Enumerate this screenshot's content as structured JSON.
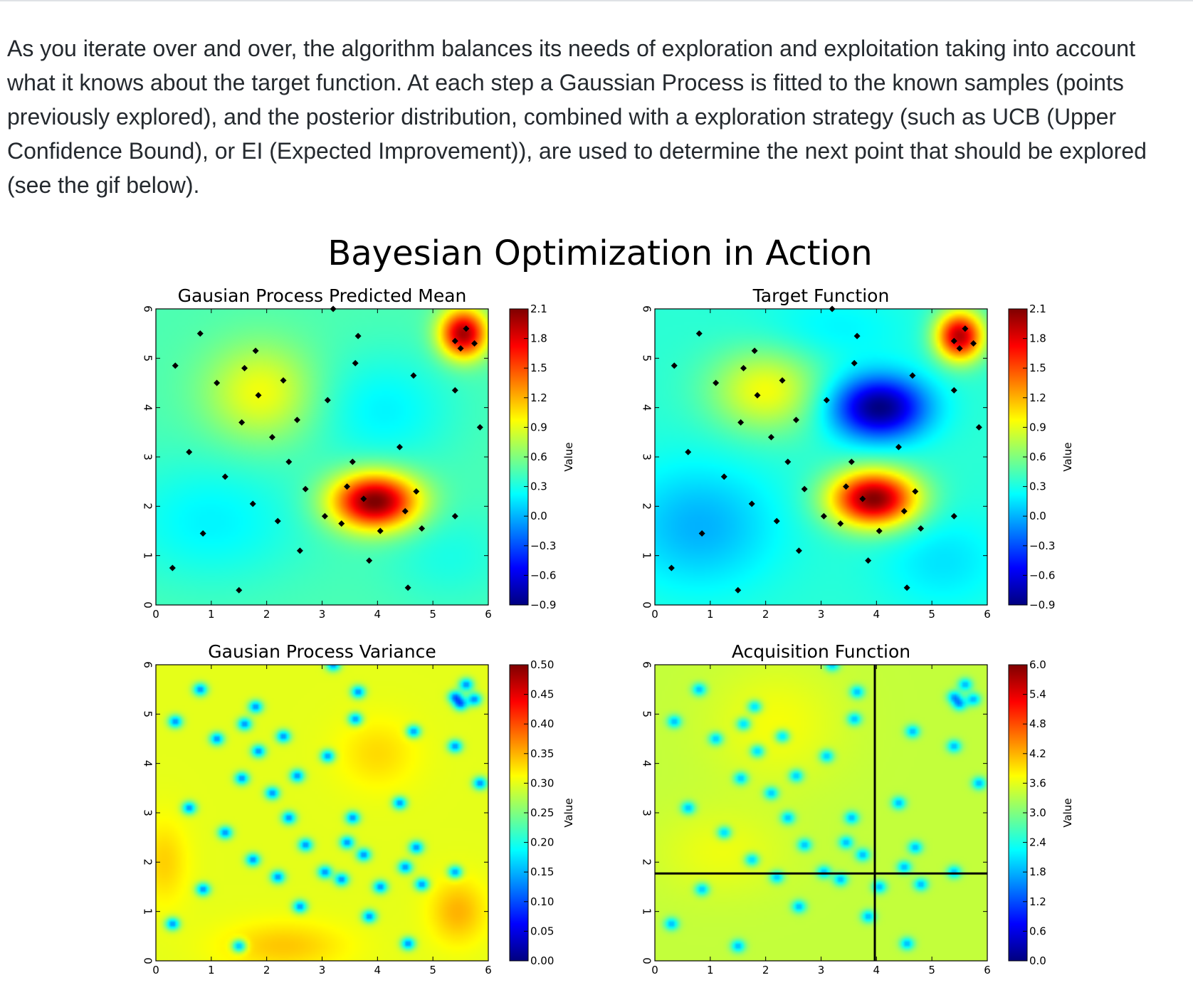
{
  "article": {
    "paragraph": "As you iterate over and over, the algorithm balances its needs of exploration and exploitation taking into account what it knows about the target function. At each step a Gaussian Process is fitted to the known samples (points previously explored), and the posterior distribution, combined with a exploration strategy (such as UCB (Upper Confidence Bound), or EI (Expected Improvement)), are used to determine the next point that should be explored (see the gif below)."
  },
  "figure": {
    "title": "Bayesian Optimization in Action"
  },
  "colors": {
    "jet": [
      "#00007f",
      "#0000ff",
      "#007fff",
      "#00ffff",
      "#7fff7f",
      "#ffff00",
      "#ff7f00",
      "#ff0000",
      "#7f0000"
    ],
    "text": "#24292e",
    "rule": "#dfe2e5"
  },
  "chart_data": [
    {
      "type": "heatmap",
      "title": "Gausian Process Predicted Mean",
      "xlim": [
        0,
        6
      ],
      "ylim": [
        0,
        6
      ],
      "x_ticks": [
        "0",
        "1",
        "2",
        "3",
        "4",
        "5",
        "6"
      ],
      "y_ticks": [
        "0",
        "1",
        "2",
        "3",
        "4",
        "5",
        "6"
      ],
      "colorbar_label": "Value",
      "colorbar_ticks": [
        "2.1",
        "1.8",
        "1.5",
        "1.2",
        "0.9",
        "0.6",
        "0.3",
        "0.0",
        "−0.3",
        "−0.6",
        "−0.9"
      ],
      "colorbar_range": [
        -0.9,
        2.1
      ],
      "surface": {
        "base": 0.45,
        "bumps": [
          {
            "x": 3.95,
            "y": 2.1,
            "amp": 1.7,
            "sx": 0.55,
            "sy": 0.4
          },
          {
            "x": 5.55,
            "y": 5.5,
            "amp": 1.55,
            "sx": 0.3,
            "sy": 0.35
          },
          {
            "x": 1.9,
            "y": 4.3,
            "amp": 0.5,
            "sx": 0.7,
            "sy": 0.7
          },
          {
            "x": 4.1,
            "y": 3.95,
            "amp": -0.25,
            "sx": 0.9,
            "sy": 0.8
          },
          {
            "x": 1.0,
            "y": 1.7,
            "amp": -0.25,
            "sx": 1.2,
            "sy": 0.9
          },
          {
            "x": 5.3,
            "y": 1.0,
            "amp": -0.15,
            "sx": 0.8,
            "sy": 0.7
          }
        ]
      },
      "points": [
        [
          0.3,
          0.75
        ],
        [
          0.85,
          1.45
        ],
        [
          1.5,
          0.3
        ],
        [
          0.6,
          3.1
        ],
        [
          1.25,
          2.6
        ],
        [
          1.75,
          2.05
        ],
        [
          2.2,
          1.7
        ],
        [
          2.4,
          2.9
        ],
        [
          2.7,
          2.35
        ],
        [
          3.05,
          1.8
        ],
        [
          3.35,
          1.65
        ],
        [
          3.45,
          2.4
        ],
        [
          3.55,
          2.9
        ],
        [
          3.75,
          2.15
        ],
        [
          3.85,
          0.9
        ],
        [
          4.05,
          1.5
        ],
        [
          4.4,
          3.2
        ],
        [
          4.7,
          2.3
        ],
        [
          4.5,
          1.9
        ],
        [
          4.8,
          1.55
        ],
        [
          4.55,
          0.35
        ],
        [
          5.5,
          5.2
        ],
        [
          5.4,
          5.35
        ],
        [
          5.6,
          5.6
        ],
        [
          5.75,
          5.3
        ],
        [
          5.85,
          3.6
        ],
        [
          5.4,
          1.8
        ],
        [
          0.8,
          5.5
        ],
        [
          0.35,
          4.85
        ],
        [
          1.1,
          4.5
        ],
        [
          1.6,
          4.8
        ],
        [
          1.8,
          5.15
        ],
        [
          2.3,
          4.55
        ],
        [
          2.55,
          3.75
        ],
        [
          1.85,
          4.25
        ],
        [
          1.55,
          3.7
        ],
        [
          2.1,
          3.4
        ],
        [
          3.1,
          4.15
        ],
        [
          3.65,
          5.45
        ],
        [
          3.6,
          4.9
        ],
        [
          4.65,
          4.65
        ],
        [
          5.4,
          4.35
        ],
        [
          2.6,
          1.1
        ],
        [
          3.2,
          6.0
        ]
      ],
      "cross": null
    },
    {
      "type": "heatmap",
      "title": "Target Function",
      "xlim": [
        0,
        6
      ],
      "ylim": [
        0,
        6
      ],
      "x_ticks": [
        "0",
        "1",
        "2",
        "3",
        "4",
        "5",
        "6"
      ],
      "y_ticks": [
        "0",
        "1",
        "2",
        "3",
        "4",
        "5",
        "6"
      ],
      "colorbar_label": "Value",
      "colorbar_ticks": [
        "2.1",
        "1.8",
        "1.5",
        "1.2",
        "0.9",
        "0.6",
        "0.3",
        "0.0",
        "−0.3",
        "−0.6",
        "−0.9"
      ],
      "colorbar_range": [
        -0.9,
        2.1
      ],
      "surface": {
        "base": 0.35,
        "bumps": [
          {
            "x": 3.95,
            "y": 2.15,
            "amp": 1.75,
            "sx": 0.55,
            "sy": 0.4
          },
          {
            "x": 5.5,
            "y": 5.45,
            "amp": 1.6,
            "sx": 0.3,
            "sy": 0.35
          },
          {
            "x": 2.0,
            "y": 4.35,
            "amp": 0.6,
            "sx": 0.7,
            "sy": 0.6
          },
          {
            "x": 4.05,
            "y": 4.0,
            "amp": -1.25,
            "sx": 0.6,
            "sy": 0.45
          },
          {
            "x": 0.8,
            "y": 1.6,
            "amp": -0.35,
            "sx": 1.0,
            "sy": 0.9
          },
          {
            "x": 5.2,
            "y": 0.9,
            "amp": -0.2,
            "sx": 0.8,
            "sy": 0.7
          },
          {
            "x": 3.2,
            "y": 5.6,
            "amp": -0.15,
            "sx": 1.0,
            "sy": 0.5
          }
        ]
      },
      "points": [
        [
          0.3,
          0.75
        ],
        [
          0.85,
          1.45
        ],
        [
          1.5,
          0.3
        ],
        [
          0.6,
          3.1
        ],
        [
          1.25,
          2.6
        ],
        [
          1.75,
          2.05
        ],
        [
          2.2,
          1.7
        ],
        [
          2.4,
          2.9
        ],
        [
          2.7,
          2.35
        ],
        [
          3.05,
          1.8
        ],
        [
          3.35,
          1.65
        ],
        [
          3.45,
          2.4
        ],
        [
          3.55,
          2.9
        ],
        [
          3.75,
          2.15
        ],
        [
          3.85,
          0.9
        ],
        [
          4.05,
          1.5
        ],
        [
          4.4,
          3.2
        ],
        [
          4.7,
          2.3
        ],
        [
          4.5,
          1.9
        ],
        [
          4.8,
          1.55
        ],
        [
          4.55,
          0.35
        ],
        [
          5.5,
          5.2
        ],
        [
          5.4,
          5.35
        ],
        [
          5.6,
          5.6
        ],
        [
          5.75,
          5.3
        ],
        [
          5.85,
          3.6
        ],
        [
          5.4,
          1.8
        ],
        [
          0.8,
          5.5
        ],
        [
          0.35,
          4.85
        ],
        [
          1.1,
          4.5
        ],
        [
          1.6,
          4.8
        ],
        [
          1.8,
          5.15
        ],
        [
          2.3,
          4.55
        ],
        [
          2.55,
          3.75
        ],
        [
          1.85,
          4.25
        ],
        [
          1.55,
          3.7
        ],
        [
          2.1,
          3.4
        ],
        [
          3.1,
          4.15
        ],
        [
          3.65,
          5.45
        ],
        [
          3.6,
          4.9
        ],
        [
          4.65,
          4.65
        ],
        [
          5.4,
          4.35
        ],
        [
          2.6,
          1.1
        ],
        [
          3.2,
          6.0
        ]
      ],
      "cross": null
    },
    {
      "type": "heatmap",
      "title": "Gausian Process Variance",
      "xlim": [
        0,
        6
      ],
      "ylim": [
        0,
        6
      ],
      "x_ticks": [
        "0",
        "1",
        "2",
        "3",
        "4",
        "5",
        "6"
      ],
      "y_ticks": [
        "0",
        "1",
        "2",
        "3",
        "4",
        "5",
        "6"
      ],
      "colorbar_label": "Value",
      "colorbar_ticks": [
        "0.50",
        "0.45",
        "0.40",
        "0.35",
        "0.30",
        "0.25",
        "0.20",
        "0.15",
        "0.10",
        "0.05",
        "0.00"
      ],
      "colorbar_range": [
        0.0,
        0.5
      ],
      "surface": {
        "base": 0.3,
        "bumps": [
          {
            "x": 5.45,
            "y": 1.0,
            "amp": 0.05,
            "sx": 0.35,
            "sy": 0.45
          },
          {
            "x": 2.3,
            "y": 0.3,
            "amp": 0.04,
            "sx": 0.8,
            "sy": 0.35
          },
          {
            "x": 0.15,
            "y": 2.0,
            "amp": 0.035,
            "sx": 0.3,
            "sy": 0.6
          },
          {
            "x": 4.0,
            "y": 4.2,
            "amp": 0.03,
            "sx": 0.5,
            "sy": 0.5
          }
        ],
        "dips": {
          "amp": 0.17,
          "s": 0.09
        }
      },
      "points": [
        [
          0.3,
          0.75
        ],
        [
          0.85,
          1.45
        ],
        [
          1.5,
          0.3
        ],
        [
          0.6,
          3.1
        ],
        [
          1.25,
          2.6
        ],
        [
          1.75,
          2.05
        ],
        [
          2.2,
          1.7
        ],
        [
          2.4,
          2.9
        ],
        [
          2.7,
          2.35
        ],
        [
          3.05,
          1.8
        ],
        [
          3.35,
          1.65
        ],
        [
          3.45,
          2.4
        ],
        [
          3.55,
          2.9
        ],
        [
          3.75,
          2.15
        ],
        [
          3.85,
          0.9
        ],
        [
          4.05,
          1.5
        ],
        [
          4.4,
          3.2
        ],
        [
          4.7,
          2.3
        ],
        [
          4.5,
          1.9
        ],
        [
          4.8,
          1.55
        ],
        [
          4.55,
          0.35
        ],
        [
          5.5,
          5.2
        ],
        [
          5.4,
          5.35
        ],
        [
          5.6,
          5.6
        ],
        [
          5.75,
          5.3
        ],
        [
          5.85,
          3.6
        ],
        [
          5.4,
          1.8
        ],
        [
          0.8,
          5.5
        ],
        [
          0.35,
          4.85
        ],
        [
          1.1,
          4.5
        ],
        [
          1.6,
          4.8
        ],
        [
          1.8,
          5.15
        ],
        [
          2.3,
          4.55
        ],
        [
          2.55,
          3.75
        ],
        [
          1.85,
          4.25
        ],
        [
          1.55,
          3.7
        ],
        [
          2.1,
          3.4
        ],
        [
          3.1,
          4.15
        ],
        [
          3.65,
          5.45
        ],
        [
          3.6,
          4.9
        ],
        [
          4.65,
          4.65
        ],
        [
          5.4,
          4.35
        ],
        [
          2.6,
          1.1
        ],
        [
          3.2,
          6.0
        ]
      ],
      "cross": null
    },
    {
      "type": "heatmap",
      "title": "Acquisition Function",
      "xlim": [
        0,
        6
      ],
      "ylim": [
        0,
        6
      ],
      "x_ticks": [
        "0",
        "1",
        "2",
        "3",
        "4",
        "5",
        "6"
      ],
      "y_ticks": [
        "0",
        "1",
        "2",
        "3",
        "4",
        "5",
        "6"
      ],
      "colorbar_label": "Value",
      "colorbar_ticks": [
        "6.0",
        "5.4",
        "4.8",
        "4.2",
        "3.6",
        "3.0",
        "2.4",
        "1.8",
        "1.2",
        "0.6",
        "0.0"
      ],
      "colorbar_range": [
        0.0,
        6.0
      ],
      "surface": {
        "base": 3.4,
        "bumps": [
          {
            "x": 2.2,
            "y": 4.8,
            "amp": 0.3,
            "sx": 0.8,
            "sy": 0.8
          },
          {
            "x": 1.2,
            "y": 2.2,
            "amp": 0.25,
            "sx": 0.8,
            "sy": 0.6
          }
        ],
        "dips": {
          "amp": 1.6,
          "s": 0.09
        }
      },
      "points": [
        [
          0.3,
          0.75
        ],
        [
          0.85,
          1.45
        ],
        [
          1.5,
          0.3
        ],
        [
          0.6,
          3.1
        ],
        [
          1.25,
          2.6
        ],
        [
          1.75,
          2.05
        ],
        [
          2.2,
          1.7
        ],
        [
          2.4,
          2.9
        ],
        [
          2.7,
          2.35
        ],
        [
          3.05,
          1.8
        ],
        [
          3.35,
          1.65
        ],
        [
          3.45,
          2.4
        ],
        [
          3.55,
          2.9
        ],
        [
          3.75,
          2.15
        ],
        [
          3.85,
          0.9
        ],
        [
          4.05,
          1.5
        ],
        [
          4.4,
          3.2
        ],
        [
          4.7,
          2.3
        ],
        [
          4.5,
          1.9
        ],
        [
          4.8,
          1.55
        ],
        [
          4.55,
          0.35
        ],
        [
          5.5,
          5.2
        ],
        [
          5.4,
          5.35
        ],
        [
          5.6,
          5.6
        ],
        [
          5.75,
          5.3
        ],
        [
          5.85,
          3.6
        ],
        [
          5.4,
          1.8
        ],
        [
          0.8,
          5.5
        ],
        [
          0.35,
          4.85
        ],
        [
          1.1,
          4.5
        ],
        [
          1.6,
          4.8
        ],
        [
          1.8,
          5.15
        ],
        [
          2.3,
          4.55
        ],
        [
          2.55,
          3.75
        ],
        [
          1.85,
          4.25
        ],
        [
          1.55,
          3.7
        ],
        [
          2.1,
          3.4
        ],
        [
          3.1,
          4.15
        ],
        [
          3.65,
          5.45
        ],
        [
          3.6,
          4.9
        ],
        [
          4.65,
          4.65
        ],
        [
          5.4,
          4.35
        ],
        [
          2.6,
          1.1
        ],
        [
          3.2,
          6.0
        ]
      ],
      "cross": {
        "x": 3.97,
        "y": 1.77
      }
    }
  ]
}
